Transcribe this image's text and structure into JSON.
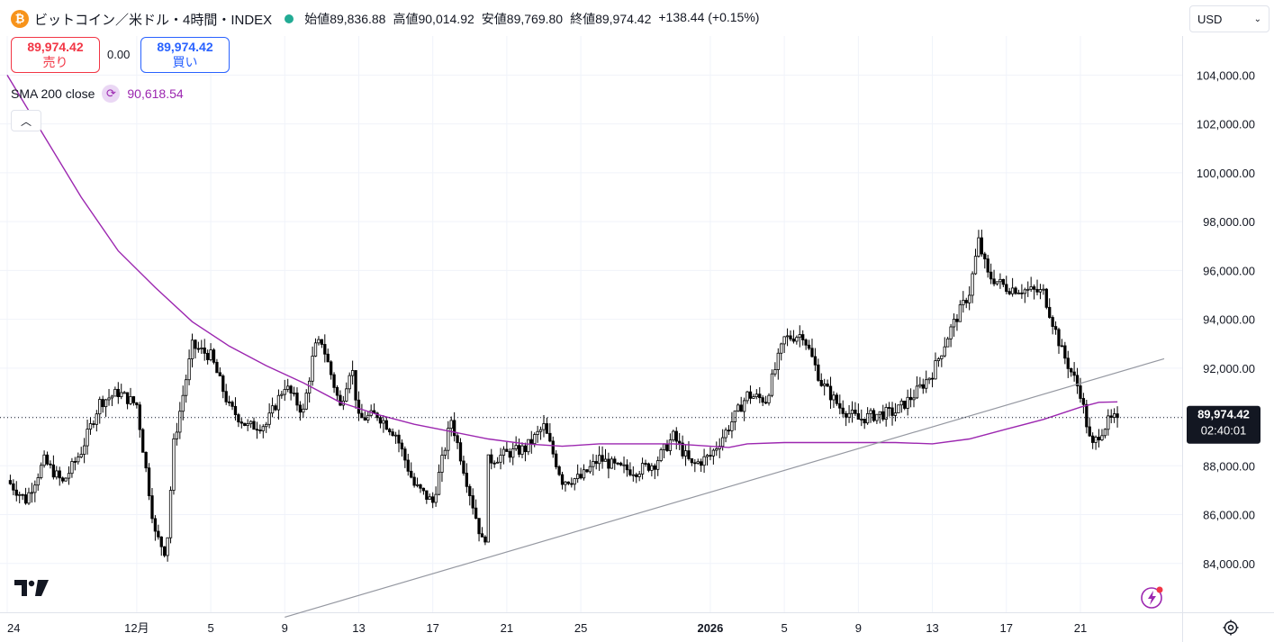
{
  "header": {
    "coin_icon": "bitcoin-icon",
    "coin_glyph": "₿",
    "title": "ビットコイン／米ドル・4時間・INDEX",
    "ohlc": {
      "open_label": "始値",
      "open": "89,836.88",
      "high_label": "高値",
      "high": "90,014.92",
      "low_label": "安値",
      "low": "89,769.80",
      "close_label": "終値",
      "close": "89,974.42",
      "change": "+138.44 (+0.15%)"
    }
  },
  "trade": {
    "sell_price": "89,974.42",
    "sell_label": "売り",
    "spread": "0.00",
    "buy_price": "89,974.42",
    "buy_label": "買い"
  },
  "indicator": {
    "name": "SMA 200 close",
    "value": "90,618.54",
    "icon": "refresh-icon"
  },
  "currency": {
    "label": "USD",
    "icon": "chevron-down-icon"
  },
  "colors": {
    "up": "#ffffff",
    "down": "#000000",
    "sma": "#9c27b0",
    "trend": "#9598a1",
    "sell": "#f23645",
    "buy": "#2962ff"
  },
  "chart_data": {
    "type": "candlestick",
    "y_axis": {
      "ticks": [
        84000,
        86000,
        88000,
        90000,
        92000,
        94000,
        96000,
        98000,
        100000,
        102000,
        104000
      ],
      "tick_labels": [
        "84,000.00",
        "86,000.00",
        "88,000.00",
        "",
        "92,000.00",
        "94,000.00",
        "96,000.00",
        "98,000.00",
        "100,000.00",
        "102,000.00",
        "104,000.00"
      ],
      "range": [
        82000,
        105600
      ]
    },
    "x_axis": {
      "ticks": [
        {
          "label": "24",
          "x": 0
        },
        {
          "label": "12月",
          "x": 7
        },
        {
          "label": "5",
          "x": 11
        },
        {
          "label": "9",
          "x": 15
        },
        {
          "label": "13",
          "x": 19
        },
        {
          "label": "17",
          "x": 23
        },
        {
          "label": "21",
          "x": 27
        },
        {
          "label": "25",
          "x": 31
        },
        {
          "label": "2026",
          "x": 38,
          "bold": true
        },
        {
          "label": "5",
          "x": 42
        },
        {
          "label": "9",
          "x": 46
        },
        {
          "label": "13",
          "x": 50
        },
        {
          "label": "17",
          "x": 54
        },
        {
          "label": "21",
          "x": 58
        }
      ],
      "unit": "days since Nov 24",
      "range": [
        0,
        63.5
      ]
    },
    "last_price": {
      "value": 89974.42,
      "label": "89,974.42",
      "countdown": "02:40:01"
    },
    "close_anchors": [
      [
        0,
        87400
      ],
      [
        1,
        86600
      ],
      [
        2,
        88200
      ],
      [
        3,
        87300
      ],
      [
        4,
        88600
      ],
      [
        5,
        90600
      ],
      [
        6,
        91000
      ],
      [
        7,
        90500
      ],
      [
        8,
        85200
      ],
      [
        8.6,
        84400
      ],
      [
        9,
        88900
      ],
      [
        10,
        92900
      ],
      [
        11,
        92500
      ],
      [
        12,
        90400
      ],
      [
        13,
        89600
      ],
      [
        14,
        89700
      ],
      [
        15,
        91300
      ],
      [
        16,
        90200
      ],
      [
        16.6,
        92800
      ],
      [
        17,
        93100
      ],
      [
        18,
        90400
      ],
      [
        18.6,
        92200
      ],
      [
        19,
        89900
      ],
      [
        20,
        90100
      ],
      [
        21,
        89300
      ],
      [
        22,
        87200
      ],
      [
        23,
        86500
      ],
      [
        24,
        89900
      ],
      [
        25,
        86900
      ],
      [
        25.8,
        84500
      ],
      [
        26,
        88200
      ],
      [
        27,
        88500
      ],
      [
        28,
        88700
      ],
      [
        29,
        89600
      ],
      [
        30,
        87400
      ],
      [
        31,
        87500
      ],
      [
        32,
        88300
      ],
      [
        33,
        87900
      ],
      [
        34,
        87800
      ],
      [
        35,
        88100
      ],
      [
        36,
        89200
      ],
      [
        37,
        88000
      ],
      [
        38,
        88400
      ],
      [
        39,
        89600
      ],
      [
        40,
        90900
      ],
      [
        41,
        90700
      ],
      [
        42,
        93200
      ],
      [
        43,
        93400
      ],
      [
        44,
        91400
      ],
      [
        45,
        90400
      ],
      [
        46,
        89900
      ],
      [
        47,
        90100
      ],
      [
        48,
        90200
      ],
      [
        49,
        90900
      ],
      [
        50,
        91800
      ],
      [
        51,
        93600
      ],
      [
        52,
        95100
      ],
      [
        52.5,
        97200
      ],
      [
        53,
        95800
      ],
      [
        54,
        95300
      ],
      [
        55,
        95200
      ],
      [
        56,
        95100
      ],
      [
        57,
        92700
      ],
      [
        58,
        91000
      ],
      [
        58.6,
        88700
      ],
      [
        59,
        89300
      ],
      [
        59.5,
        89800
      ],
      [
        60,
        89974
      ]
    ],
    "sma_200": [
      [
        0,
        104000
      ],
      [
        4,
        99000
      ],
      [
        6,
        96800
      ],
      [
        8,
        95300
      ],
      [
        10,
        93900
      ],
      [
        12,
        92900
      ],
      [
        14,
        92100
      ],
      [
        16,
        91400
      ],
      [
        18,
        90600
      ],
      [
        20,
        90100
      ],
      [
        22,
        89700
      ],
      [
        24,
        89400
      ],
      [
        26,
        89100
      ],
      [
        28,
        88900
      ],
      [
        30,
        88800
      ],
      [
        32,
        88900
      ],
      [
        34,
        88900
      ],
      [
        36,
        88900
      ],
      [
        38,
        88800
      ],
      [
        39,
        88750
      ],
      [
        40,
        88900
      ],
      [
        42,
        88950
      ],
      [
        44,
        88950
      ],
      [
        46,
        88950
      ],
      [
        48,
        88950
      ],
      [
        50,
        88900
      ],
      [
        52,
        89100
      ],
      [
        54,
        89500
      ],
      [
        56,
        89900
      ],
      [
        58,
        90400
      ],
      [
        59,
        90600
      ],
      [
        60,
        90618
      ]
    ],
    "trendline": [
      [
        15,
        81800
      ],
      [
        63.5,
        92600
      ]
    ]
  }
}
